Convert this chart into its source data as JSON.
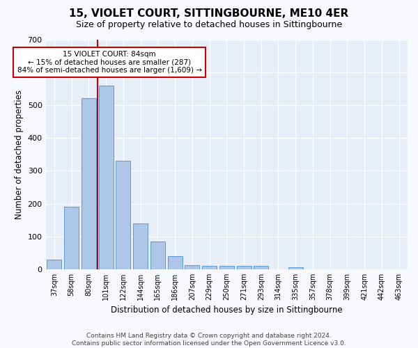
{
  "title": "15, VIOLET COURT, SITTINGBOURNE, ME10 4ER",
  "subtitle": "Size of property relative to detached houses in Sittingbourne",
  "xlabel": "Distribution of detached houses by size in Sittingbourne",
  "ylabel": "Number of detached properties",
  "categories": [
    "37sqm",
    "58sqm",
    "80sqm",
    "101sqm",
    "122sqm",
    "144sqm",
    "165sqm",
    "186sqm",
    "207sqm",
    "229sqm",
    "250sqm",
    "271sqm",
    "293sqm",
    "314sqm",
    "335sqm",
    "357sqm",
    "378sqm",
    "399sqm",
    "421sqm",
    "442sqm",
    "463sqm"
  ],
  "values": [
    30,
    190,
    520,
    560,
    330,
    140,
    85,
    40,
    13,
    10,
    10,
    10,
    10,
    0,
    6,
    0,
    0,
    0,
    0,
    0,
    0
  ],
  "bar_color": "#aec6e8",
  "bar_edge_color": "#5b9bd5",
  "background_color": "#e8eef8",
  "grid_color": "#ffffff",
  "vline_color": "#cc0000",
  "vline_bar_index": 2,
  "annotation_text": "15 VIOLET COURT: 84sqm\n← 15% of detached houses are smaller (287)\n84% of semi-detached houses are larger (1,609) →",
  "annotation_box_edgecolor": "#cc0000",
  "ylim": [
    0,
    700
  ],
  "yticks": [
    0,
    100,
    200,
    300,
    400,
    500,
    600,
    700
  ],
  "footer_line1": "Contains HM Land Registry data © Crown copyright and database right 2024.",
  "footer_line2": "Contains public sector information licensed under the Open Government Licence v3.0."
}
